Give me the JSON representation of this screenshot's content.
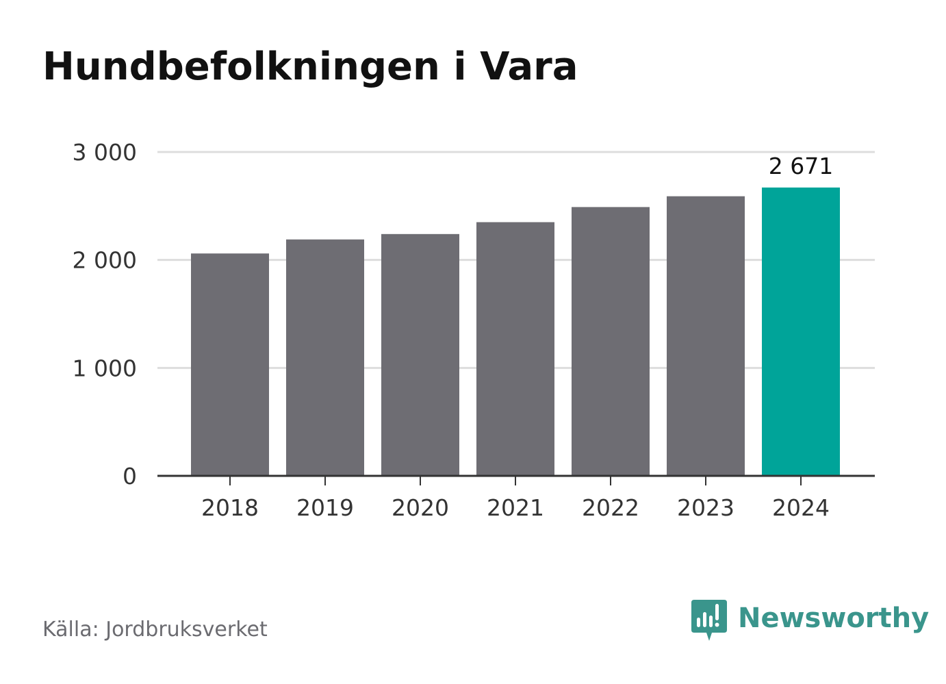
{
  "chart_data": {
    "type": "bar",
    "title": "Hundbefolkningen i Vara",
    "xlabel": "",
    "ylabel": "",
    "categories": [
      "2018",
      "2019",
      "2020",
      "2021",
      "2022",
      "2023",
      "2024"
    ],
    "values": [
      2060,
      2190,
      2240,
      2350,
      2490,
      2590,
      2671
    ],
    "ylim": [
      0,
      3000
    ],
    "yticks": [
      0,
      1000,
      2000,
      3000
    ],
    "ytick_labels": [
      "0",
      "1 000",
      "2 000",
      "3 000"
    ],
    "data_labels": [
      {
        "category": "2024",
        "text": "2 671"
      }
    ],
    "grid": true,
    "colors": {
      "bar": "#6e6d73",
      "highlight": "#00a499",
      "grid": "#dddddd",
      "axis": "#333333"
    },
    "highlight_category": "2024"
  },
  "footer": {
    "source": "Källa: Jordbruksverket",
    "brand": "Newsworthy",
    "brand_icon": "newsworthy-logo-icon",
    "brand_color": "#3a958c"
  }
}
